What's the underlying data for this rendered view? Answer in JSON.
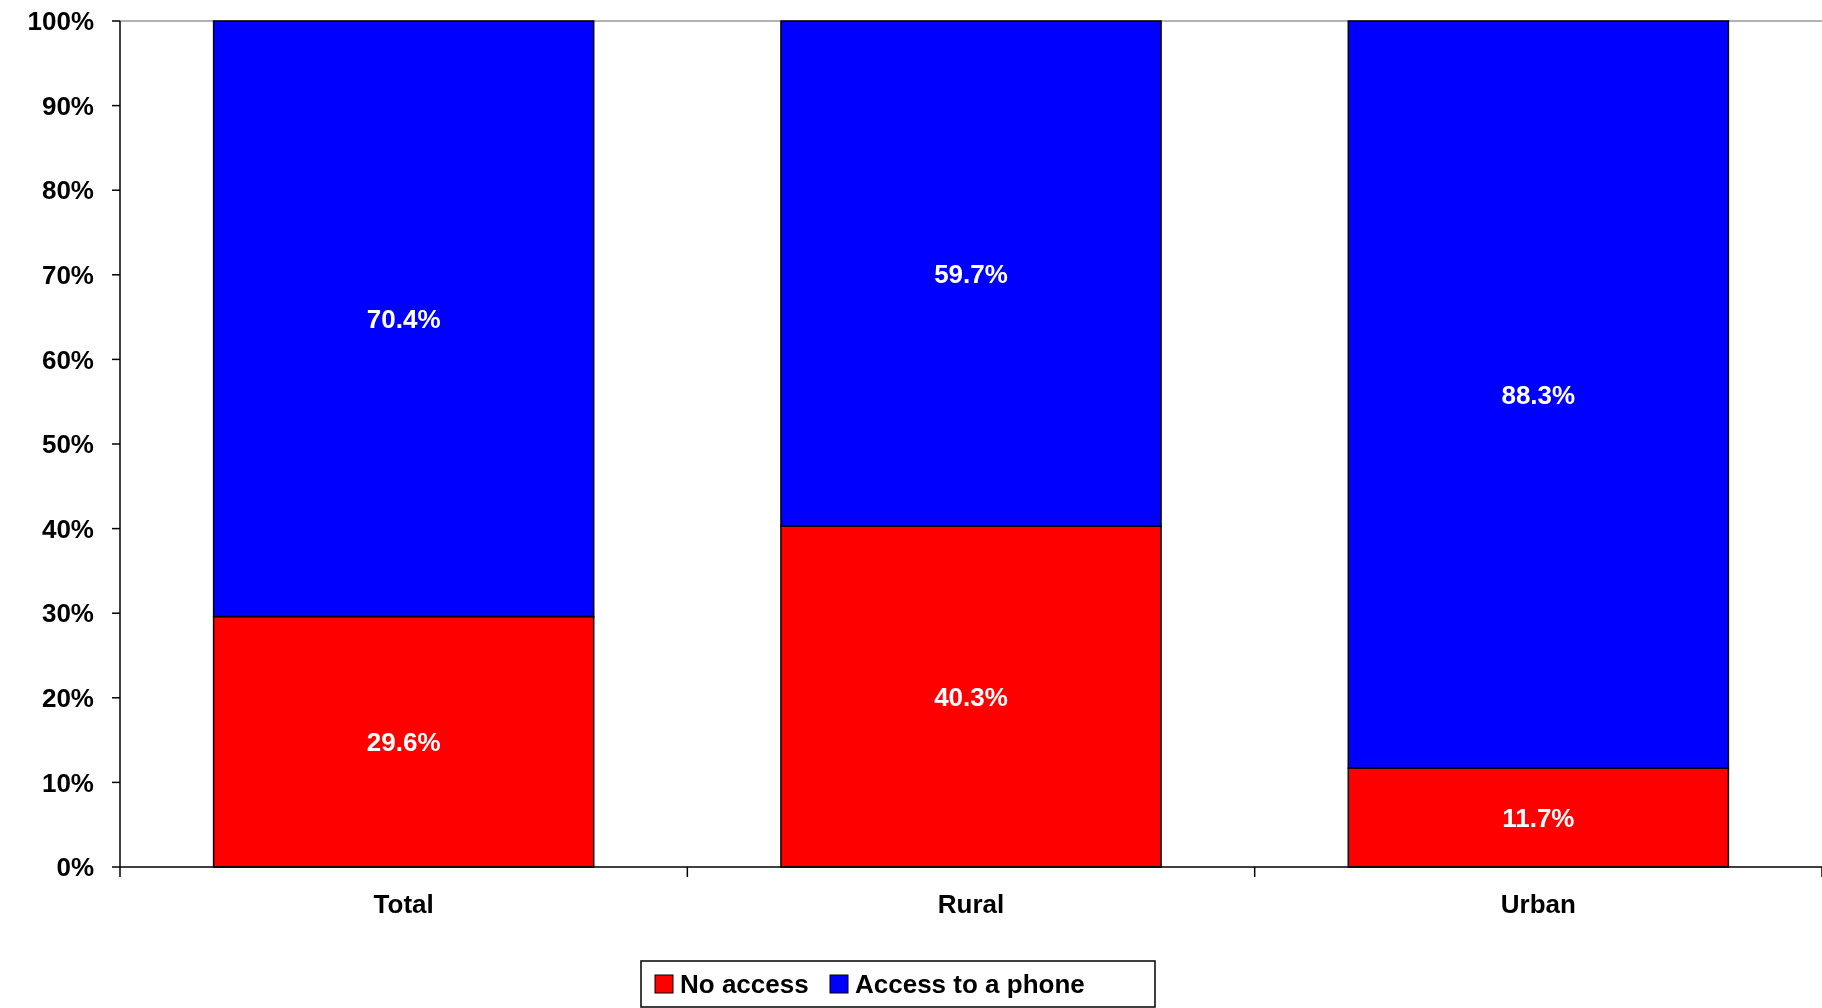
{
  "chart_data": {
    "type": "bar",
    "stacked": true,
    "categories": [
      "Total",
      "Rural",
      "Urban"
    ],
    "series": [
      {
        "name": "No access",
        "color": "#ff0000",
        "values": [
          29.6,
          40.3,
          11.7
        ]
      },
      {
        "name": "Access to a phone",
        "color": "#0000ff",
        "values": [
          70.4,
          59.7,
          88.3
        ]
      }
    ],
    "ylim": [
      0,
      100
    ],
    "yticks": [
      {
        "value": 0,
        "label": "0%"
      },
      {
        "value": 10,
        "label": "10%"
      },
      {
        "value": 20,
        "label": "20%"
      },
      {
        "value": 30,
        "label": "30%"
      },
      {
        "value": 40,
        "label": "40%"
      },
      {
        "value": 50,
        "label": "50%"
      },
      {
        "value": 60,
        "label": "60%"
      },
      {
        "value": 70,
        "label": "70%"
      },
      {
        "value": 80,
        "label": "80%"
      },
      {
        "value": 90,
        "label": "90%"
      },
      {
        "value": 100,
        "label": "100%"
      }
    ],
    "value_labels": [
      [
        "29.6%",
        "40.3%",
        "11.7%"
      ],
      [
        "70.4%",
        "59.7%",
        "88.3%"
      ]
    ],
    "legend": "bottom",
    "grid": false
  }
}
